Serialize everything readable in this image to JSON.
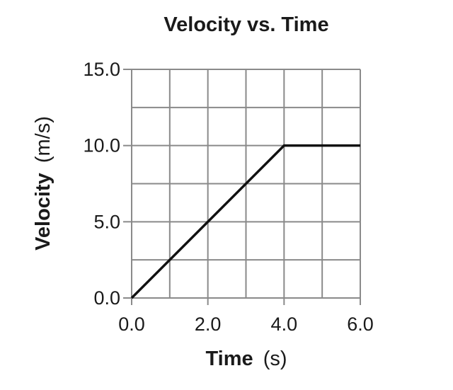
{
  "chart_data": {
    "type": "line",
    "title": "Velocity vs. Time",
    "xlabel": "Time",
    "xlabel_unit": "(s)",
    "ylabel": "Velocity",
    "ylabel_unit": "(m/s)",
    "xlim": [
      0,
      6
    ],
    "ylim": [
      0,
      15
    ],
    "x_ticks": [
      0,
      2,
      4,
      6
    ],
    "x_tick_labels": [
      "0.0",
      "2.0",
      "4.0",
      "6.0"
    ],
    "y_ticks": [
      0,
      5,
      10,
      15
    ],
    "y_tick_labels": [
      "0.0",
      "5.0",
      "10.0",
      "15.0"
    ],
    "x_grid_step": 1,
    "y_grid_step": 2.5,
    "grid": true,
    "series": [
      {
        "x": [
          0,
          4,
          6
        ],
        "y": [
          0,
          10,
          10
        ],
        "color": "#111111"
      }
    ]
  }
}
